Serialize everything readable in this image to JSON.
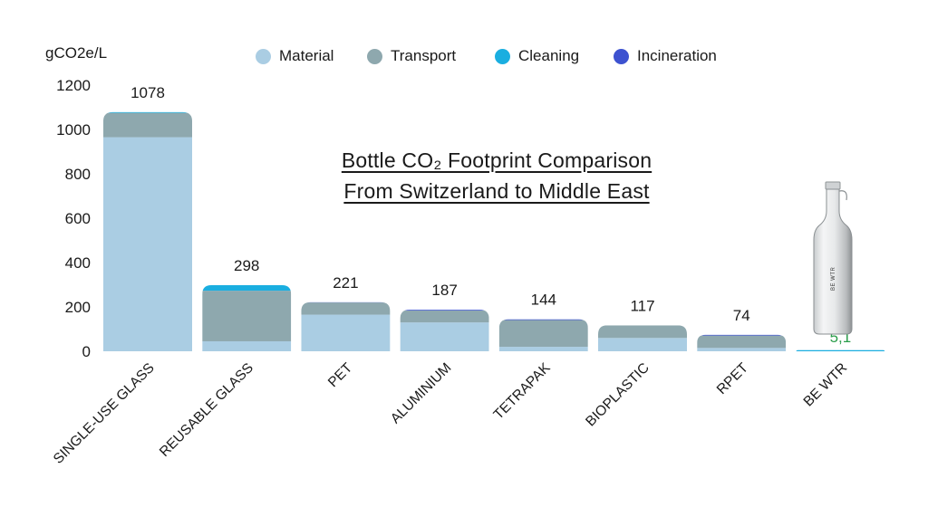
{
  "title": {
    "line1": "Bottle CO₂ Footprint Comparison",
    "line2": "From Switzerland to Middle East"
  },
  "colors": {
    "material": "#aacde3",
    "transport": "#8ea8ae",
    "cleaning": "#1aaee0",
    "incineration": "#3d52d0",
    "highlight_label": "#2a9d4a",
    "text": "#1a1a1a"
  },
  "legend": [
    {
      "label": "Material",
      "color": "#aacde3"
    },
    {
      "label": "Transport",
      "color": "#8ea8ae"
    },
    {
      "label": "Cleaning",
      "color": "#1aaee0"
    },
    {
      "label": "Incineration",
      "color": "#3d52d0"
    }
  ],
  "bottle": {
    "label": "BE WTR"
  },
  "chart_data": {
    "type": "bar",
    "stacked": true,
    "ylabel": "gCO2e/L",
    "xlabel": "",
    "ylim": [
      0,
      1200
    ],
    "yticks": [
      0,
      200,
      400,
      600,
      800,
      1000,
      1200
    ],
    "categories": [
      "SINGLE-USE GLASS",
      "REUSABLE GLASS",
      "PET",
      "ALUMINIUM",
      "TETRAPAK",
      "BIOPLASTIC",
      "RPET",
      "BE WTR"
    ],
    "totals_labels": [
      "1078",
      "298",
      "221",
      "187",
      "144",
      "117",
      "74",
      "5,1"
    ],
    "totals": [
      1078,
      298,
      221,
      187,
      144,
      117,
      74,
      5.1
    ],
    "series": [
      {
        "name": "Material",
        "values": [
          965,
          45,
          165,
          130,
          20,
          60,
          15,
          0
        ]
      },
      {
        "name": "Transport",
        "values": [
          110,
          228,
          55,
          54,
          121,
          57,
          56,
          0
        ]
      },
      {
        "name": "Cleaning",
        "values": [
          3,
          25,
          0,
          0,
          0,
          0,
          0,
          5.1
        ]
      },
      {
        "name": "Incineration",
        "values": [
          0,
          0,
          1,
          3,
          3,
          0,
          3,
          0
        ]
      }
    ],
    "grid": false,
    "legend_position": "top"
  }
}
